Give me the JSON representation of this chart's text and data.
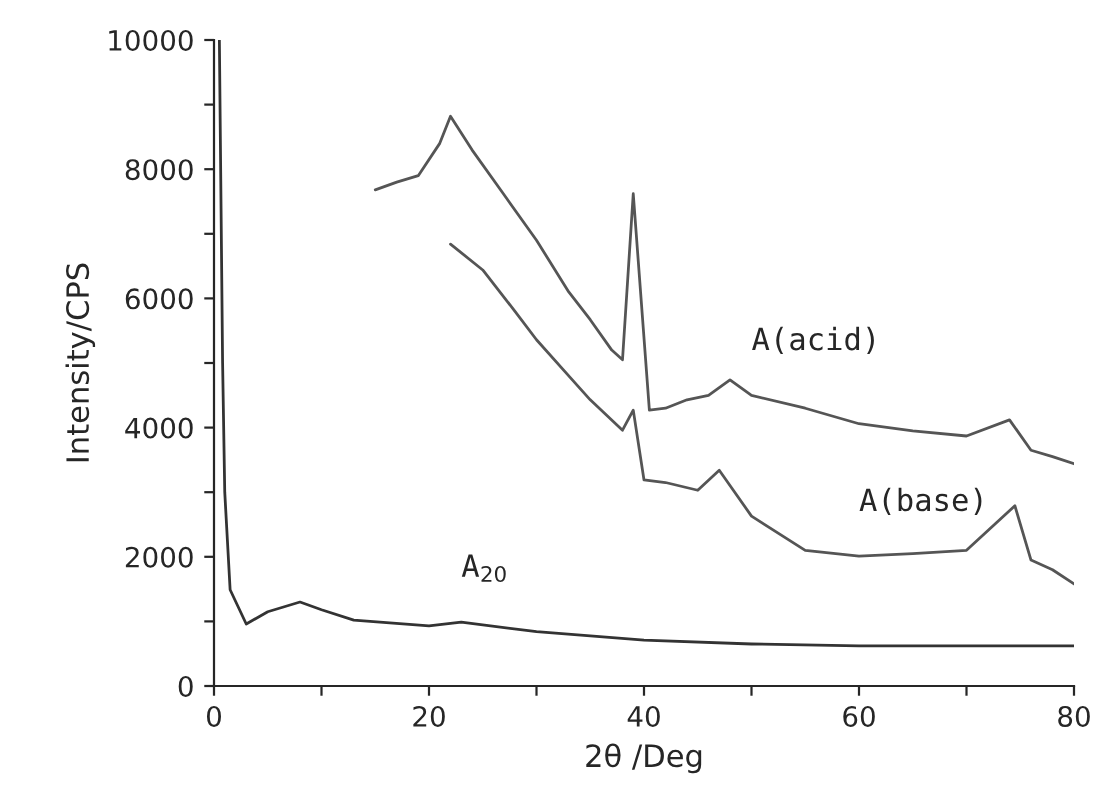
{
  "chart_data": {
    "type": "line",
    "xlabel": "2θ /Deg",
    "ylabel": "Intensity/CPS",
    "xlim": [
      0,
      80
    ],
    "ylim": [
      0,
      10000
    ],
    "xticks": [
      0,
      {
        "value": 10,
        "label": null
      },
      20,
      {
        "value": 30,
        "label": null
      },
      40,
      {
        "value": 50,
        "label": null
      },
      60,
      {
        "value": 70,
        "label": null
      },
      80
    ],
    "yticks": [
      0,
      {
        "value": 1000,
        "label": null
      },
      2000,
      {
        "value": 3000,
        "label": null
      },
      4000,
      {
        "value": 5000,
        "label": null
      },
      6000,
      {
        "value": 7000,
        "label": null
      },
      8000,
      {
        "value": 9000,
        "label": null
      },
      10000
    ],
    "grid": false,
    "legend": false,
    "marker": "none",
    "line_style": "solid",
    "series": [
      {
        "name": "A(acid)",
        "color": "#555555",
        "x": [
          15,
          17,
          19,
          21,
          22,
          24,
          27,
          30,
          33,
          35,
          37,
          38,
          39,
          40.5,
          42,
          44,
          46,
          48,
          50,
          55,
          60,
          65,
          70,
          74,
          76,
          78,
          80
        ],
        "values": [
          7680,
          7800,
          7900,
          8400,
          8820,
          8300,
          7600,
          6900,
          6100,
          5670,
          5200,
          5050,
          7620,
          4270,
          4300,
          4430,
          4500,
          4740,
          4500,
          4300,
          4060,
          3950,
          3870,
          4120,
          3650,
          3550,
          3440
        ]
      },
      {
        "name": "A(base)",
        "color": "#555555",
        "x": [
          22,
          25,
          28,
          30,
          33,
          35,
          38,
          39,
          40,
          42,
          45,
          47,
          50,
          55,
          60,
          65,
          70,
          74.5,
          76,
          78,
          80
        ],
        "values": [
          6840,
          6440,
          5800,
          5360,
          4800,
          4430,
          3960,
          4270,
          3190,
          3150,
          3030,
          3340,
          2630,
          2100,
          2010,
          2050,
          2100,
          2790,
          1950,
          1800,
          1580
        ]
      },
      {
        "name": "A$_{20}$",
        "color": "#333333",
        "x": [
          0.5,
          0.8,
          1.0,
          1.5,
          3,
          5,
          8,
          10,
          13,
          20,
          23,
          30,
          40,
          50,
          60,
          80
        ],
        "values": [
          10000,
          5000,
          3000,
          1490,
          960,
          1150,
          1300,
          1180,
          1020,
          930,
          990,
          840,
          710,
          650,
          620,
          620
        ]
      }
    ]
  }
}
